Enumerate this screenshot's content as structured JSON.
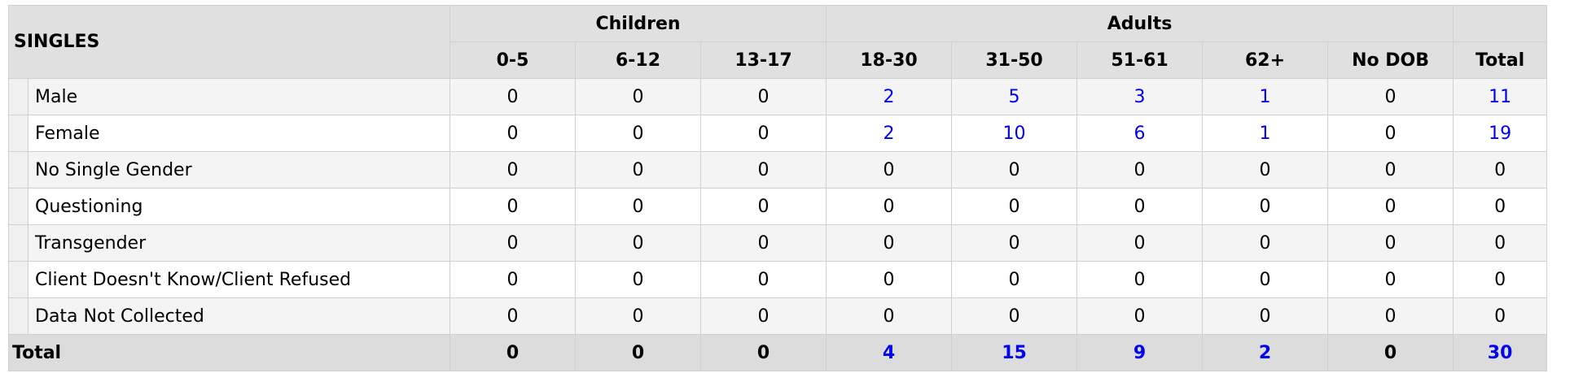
{
  "header": {
    "title": "SINGLES",
    "groups": [
      "Children",
      "Adults"
    ],
    "columns": [
      "0-5",
      "6-12",
      "13-17",
      "18-30",
      "31-50",
      "51-61",
      "62+",
      "No DOB",
      "Total"
    ]
  },
  "table": {
    "rows": [
      {
        "label": "Male",
        "values": [
          0,
          0,
          0,
          2,
          5,
          3,
          1,
          0,
          11
        ]
      },
      {
        "label": "Female",
        "values": [
          0,
          0,
          0,
          2,
          10,
          6,
          1,
          0,
          19
        ]
      },
      {
        "label": "No Single Gender",
        "values": [
          0,
          0,
          0,
          0,
          0,
          0,
          0,
          0,
          0
        ]
      },
      {
        "label": "Questioning",
        "values": [
          0,
          0,
          0,
          0,
          0,
          0,
          0,
          0,
          0
        ]
      },
      {
        "label": "Transgender",
        "values": [
          0,
          0,
          0,
          0,
          0,
          0,
          0,
          0,
          0
        ]
      },
      {
        "label": "Client Doesn't Know/Client Refused",
        "values": [
          0,
          0,
          0,
          0,
          0,
          0,
          0,
          0,
          0
        ]
      },
      {
        "label": "Data Not Collected",
        "values": [
          0,
          0,
          0,
          0,
          0,
          0,
          0,
          0,
          0
        ]
      }
    ],
    "total": {
      "label": "Total",
      "values": [
        0,
        0,
        0,
        4,
        15,
        9,
        2,
        0,
        30
      ]
    }
  }
}
